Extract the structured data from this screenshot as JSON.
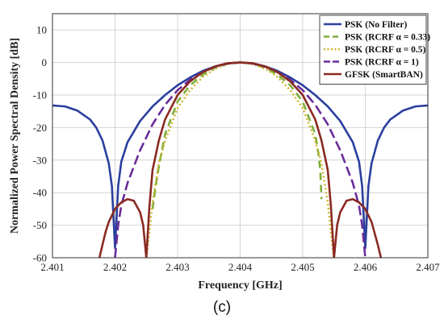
{
  "caption": "(c)",
  "chart_data": {
    "type": "line",
    "xlabel": "Frequency [GHz]",
    "ylabel": "Normalized Power Spectral Density [dB]",
    "xlim": [
      2.401,
      2.407
    ],
    "ylim": [
      -60,
      15
    ],
    "xticks": [
      2.401,
      2.402,
      2.403,
      2.404,
      2.405,
      2.406,
      2.407
    ],
    "xtick_labels": [
      "2.401",
      "2.402",
      "2.403",
      "2.404",
      "2.405",
      "2.406",
      "2.407"
    ],
    "yticks": [
      10,
      0,
      -10,
      -20,
      -30,
      -40,
      -50,
      -60
    ],
    "ytick_labels": [
      "10",
      "0",
      "-10",
      "-20",
      "-30",
      "-40",
      "-50",
      "-60"
    ],
    "grid": true,
    "legend_position": "top-right",
    "series": [
      {
        "name": "PSK (No Filter)",
        "color": "#2b3f9e",
        "dash": "solid",
        "x": [
          2.401,
          2.4012,
          2.4014,
          2.4016,
          2.4017,
          2.4018,
          2.4019,
          2.40195,
          2.402,
          2.40205,
          2.4021,
          2.4022,
          2.4024,
          2.4026,
          2.4028,
          2.403,
          2.4032,
          2.4034,
          2.4036,
          2.4038,
          2.404,
          2.4042,
          2.4044,
          2.4046,
          2.4048,
          2.405,
          2.4052,
          2.4054,
          2.4056,
          2.4058,
          2.4059,
          2.40595,
          2.406,
          2.40605,
          2.4061,
          2.4062,
          2.4063,
          2.4064,
          2.4066,
          2.4068,
          2.407
        ],
        "y": [
          -13.2,
          -13.5,
          -14.8,
          -17.5,
          -20,
          -24,
          -31,
          -38,
          -57,
          -38,
          -30.5,
          -24.5,
          -18,
          -13.5,
          -10,
          -7,
          -4.6,
          -2.6,
          -1.2,
          -0.3,
          0,
          -0.3,
          -1.2,
          -2.6,
          -4.6,
          -7,
          -10,
          -13.5,
          -18,
          -24.5,
          -30.5,
          -38,
          -57,
          -38,
          -31,
          -24,
          -20,
          -17.5,
          -14.8,
          -13.5,
          -13.2
        ]
      },
      {
        "name": "PSK (RCRF α = 0.33)",
        "color": "#7fae3c",
        "dash": "9,6",
        "x": [
          2.4026,
          2.40265,
          2.4027,
          2.4028,
          2.403,
          2.4032,
          2.4034,
          2.4036,
          2.4038,
          2.404,
          2.4042,
          2.4044,
          2.4046,
          2.4048,
          2.405,
          2.4052,
          2.40525,
          2.40528,
          2.4053
        ],
        "y": [
          -45,
          -38,
          -32,
          -22,
          -12,
          -7,
          -3.8,
          -1.6,
          -0.4,
          0,
          -0.4,
          -1.6,
          -3.8,
          -7,
          -12,
          -22,
          -28,
          -33,
          -42
        ]
      },
      {
        "name": "PSK (RCRF α = 0.5)",
        "color": "#d1b72e",
        "dash": "2,3",
        "x": [
          2.4025,
          2.40255,
          2.4026,
          2.4027,
          2.4028,
          2.403,
          2.4032,
          2.4034,
          2.4036,
          2.4038,
          2.404,
          2.4042,
          2.4044,
          2.4046,
          2.4048,
          2.405,
          2.4052,
          2.4053,
          2.4054,
          2.40545,
          2.4055
        ],
        "y": [
          -60,
          -52,
          -43,
          -31,
          -24,
          -14,
          -8.5,
          -4.5,
          -1.9,
          -0.5,
          0,
          -0.5,
          -1.9,
          -4.5,
          -8.5,
          -14,
          -24,
          -31,
          -43,
          -52,
          -60
        ]
      },
      {
        "name": "PSK (RCRF α = 1)",
        "color": "#6a2c9a",
        "dash": "12,5",
        "x": [
          2.402,
          2.40205,
          2.4021,
          2.4022,
          2.4024,
          2.4026,
          2.4028,
          2.403,
          2.4032,
          2.4034,
          2.4036,
          2.4038,
          2.404,
          2.4042,
          2.4044,
          2.4046,
          2.4048,
          2.405,
          2.4052,
          2.4054,
          2.4056,
          2.4058,
          2.4059,
          2.40595,
          2.406
        ],
        "y": [
          -60,
          -50,
          -44,
          -37,
          -27,
          -19,
          -13,
          -8.5,
          -5.3,
          -3,
          -1.3,
          -0.3,
          0,
          -0.3,
          -1.3,
          -3,
          -5.3,
          -8.5,
          -13,
          -19,
          -27,
          -37,
          -44,
          -50,
          -60
        ]
      },
      {
        "name": "GFSK (SmartBAN)",
        "color": "#8a2a22",
        "dash": "solid",
        "x": [
          2.40175,
          2.4018,
          2.40185,
          2.4019,
          2.402,
          2.4021,
          2.4022,
          2.4023,
          2.4024,
          2.40245,
          2.4025,
          2.40255,
          2.4026,
          2.4027,
          2.4028,
          2.403,
          2.4032,
          2.4034,
          2.4036,
          2.4038,
          2.404,
          2.4042,
          2.4044,
          2.4046,
          2.4048,
          2.405,
          2.4052,
          2.4053,
          2.4054,
          2.40545,
          2.4055,
          2.40555,
          2.4056,
          2.4057,
          2.4058,
          2.4059,
          2.406,
          2.4061,
          2.4062,
          2.40625
        ],
        "y": [
          -60,
          -56,
          -52,
          -49,
          -45,
          -43,
          -42,
          -42.5,
          -46,
          -50,
          -60,
          -44,
          -33,
          -24,
          -17.5,
          -10,
          -5.8,
          -3,
          -1.2,
          -0.2,
          0,
          -0.2,
          -1.2,
          -3,
          -5.8,
          -10,
          -17.5,
          -24,
          -33,
          -44,
          -60,
          -50,
          -46,
          -42.5,
          -42,
          -43,
          -45,
          -49,
          -56,
          -60
        ]
      }
    ]
  }
}
